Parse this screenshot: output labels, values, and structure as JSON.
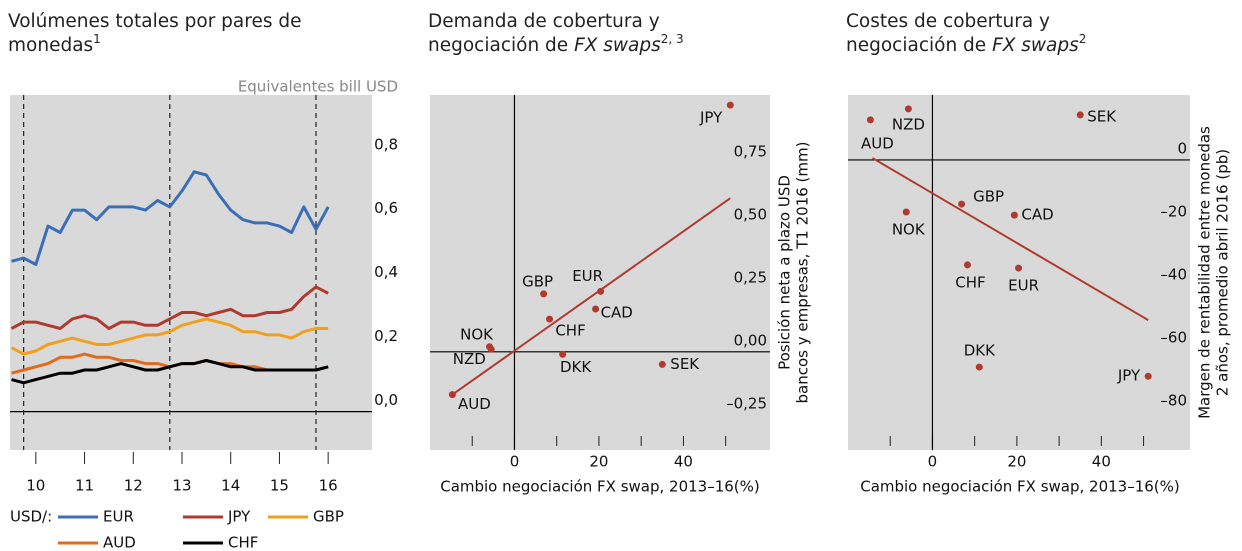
{
  "chart_data": [
    {
      "type": "line",
      "title_lines": [
        "Volúmenes totales por pares de",
        "monedas"
      ],
      "title_note": "1",
      "unit_label": "Equivalentes bill USD",
      "legend_title": "USD/:",
      "x": [
        2010,
        2010.25,
        2010.5,
        2010.75,
        2011,
        2011.25,
        2011.5,
        2011.75,
        2012,
        2012.25,
        2012.5,
        2012.75,
        2013,
        2013.25,
        2013.5,
        2013.75,
        2014,
        2014.25,
        2014.5,
        2014.75,
        2015,
        2015.25,
        2015.5,
        2015.75,
        2016,
        2016.25,
        2016.5
      ],
      "xlim": [
        2009.97,
        2017.4
      ],
      "xticks": [
        {
          "value": 2010.5,
          "label": "10"
        },
        {
          "value": 2011.5,
          "label": "11"
        },
        {
          "value": 2012.5,
          "label": "12"
        },
        {
          "value": 2013.5,
          "label": "13"
        },
        {
          "value": 2014.5,
          "label": "14"
        },
        {
          "value": 2015.5,
          "label": "15"
        },
        {
          "value": 2016.5,
          "label": "16"
        }
      ],
      "vlines": [
        2010.25,
        2013.25,
        2016.25
      ],
      "ylim": [
        -0.12,
        0.99
      ],
      "yticks": [
        {
          "value": 0,
          "label": "0,0"
        },
        {
          "value": 0.2,
          "label": "0,2"
        },
        {
          "value": 0.4,
          "label": "0,4"
        },
        {
          "value": 0.6,
          "label": "0,6"
        },
        {
          "value": 0.8,
          "label": "0,8"
        }
      ],
      "series": [
        {
          "name": "EUR",
          "color": "#3a6fb8",
          "values": [
            0.47,
            0.48,
            0.46,
            0.58,
            0.56,
            0.63,
            0.63,
            0.6,
            0.64,
            0.64,
            0.64,
            0.63,
            0.66,
            0.64,
            0.69,
            0.75,
            0.74,
            0.68,
            0.63,
            0.6,
            0.59,
            0.59,
            0.58,
            0.56,
            0.64,
            0.57,
            0.64
          ]
        },
        {
          "name": "JPY",
          "color": "#b03a2e",
          "values": [
            0.26,
            0.28,
            0.28,
            0.27,
            0.26,
            0.29,
            0.3,
            0.29,
            0.26,
            0.28,
            0.28,
            0.27,
            0.27,
            0.29,
            0.31,
            0.31,
            0.3,
            0.31,
            0.32,
            0.3,
            0.3,
            0.31,
            0.31,
            0.32,
            0.36,
            0.39,
            0.37
          ]
        },
        {
          "name": "GBP",
          "color": "#f0a01e",
          "values": [
            0.2,
            0.18,
            0.19,
            0.21,
            0.22,
            0.23,
            0.22,
            0.21,
            0.21,
            0.22,
            0.23,
            0.24,
            0.24,
            0.25,
            0.27,
            0.28,
            0.29,
            0.28,
            0.27,
            0.25,
            0.25,
            0.24,
            0.24,
            0.23,
            0.25,
            0.26,
            0.26
          ]
        },
        {
          "name": "AUD",
          "color": "#e06a1e",
          "values": [
            0.12,
            0.13,
            0.14,
            0.15,
            0.17,
            0.17,
            0.18,
            0.17,
            0.17,
            0.16,
            0.16,
            0.15,
            0.15,
            0.14,
            0.15,
            0.15,
            0.16,
            0.15,
            0.15,
            0.14,
            0.14,
            0.13,
            0.13,
            0.13,
            0.13,
            0.13,
            0.14
          ]
        },
        {
          "name": "CHF",
          "color": "#000000",
          "values": [
            0.1,
            0.09,
            0.1,
            0.11,
            0.12,
            0.12,
            0.13,
            0.13,
            0.14,
            0.15,
            0.14,
            0.13,
            0.13,
            0.14,
            0.15,
            0.15,
            0.16,
            0.15,
            0.14,
            0.14,
            0.13,
            0.13,
            0.13,
            0.13,
            0.13,
            0.13,
            0.14
          ]
        }
      ]
    },
    {
      "type": "scatter",
      "title_lines": [
        "Demanda de cobertura y",
        "negociación de "
      ],
      "title_italic": "FX swaps",
      "title_note": "2, 3",
      "xlabel": "Cambio negociación FX swap, 2013–16(%)",
      "ylabel_lines": [
        "Posición neta a plazo USD",
        "bancos y empresas, T1 2016 (mm)"
      ],
      "color": "#b03a2e",
      "categories": [
        "JPY",
        "EUR",
        "GBP",
        "CAD",
        "CHF",
        "NOK",
        "NZD",
        "DKK",
        "SEK",
        "AUD"
      ],
      "x": [
        51.1,
        20.4,
        6.9,
        19.2,
        8.3,
        -5.9,
        -5.5,
        11.4,
        35,
        -14.7
      ],
      "values": [
        0.98,
        0.24,
        0.23,
        0.17,
        0.13,
        0.02,
        0.01,
        -0.01,
        -0.05,
        -0.17
      ],
      "trendline": {
        "x": [
          -14.7,
          51.1
        ],
        "y": [
          -0.17,
          0.61
        ],
        "color": "#b03a2e"
      },
      "xlim": [
        -20,
        60.5
      ],
      "xticks": [
        0,
        20,
        40
      ],
      "xminorticks": [
        -10,
        10,
        30,
        50
      ],
      "ylim": [
        -0.39,
        1.02
      ],
      "yticks": [
        {
          "value": -0.25,
          "label": "–0,25"
        },
        {
          "value": 0,
          "label": "0,00"
        },
        {
          "value": 0.25,
          "label": "0,25"
        },
        {
          "value": 0.5,
          "label": "0,50"
        },
        {
          "value": 0.75,
          "label": "0,75"
        }
      ]
    },
    {
      "type": "scatter",
      "title_lines": [
        "Costes de cobertura y",
        "negociación de "
      ],
      "title_italic": "FX swaps",
      "title_note": "2",
      "xlabel": "Cambio negociación  FX swap, 2013–16(%)",
      "ylabel_lines": [
        "Margen de rentabilidad entre monedas",
        "2 años, promedio abril 2016 (pb)"
      ],
      "color": "#b03a2e",
      "categories": [
        "JPY",
        "EUR",
        "GBP",
        "CAD",
        "CHF",
        "NOK",
        "NZD",
        "DKK",
        "SEK",
        "AUD"
      ],
      "x": [
        51.1,
        20.4,
        6.9,
        19.4,
        8.3,
        -6.2,
        -5.7,
        11.1,
        35,
        -14.7
      ],
      "values": [
        -68.6,
        -34.3,
        -14,
        -17.5,
        -33.3,
        -16.5,
        16.2,
        -65.7,
        14.3,
        12.7
      ],
      "trendline": {
        "x": [
          -14.2,
          51.1
        ],
        "y": [
          0.6,
          -50.8
        ],
        "color": "#b03a2e"
      },
      "xlim": [
        -20,
        61
      ],
      "xticks": [
        0,
        20,
        40
      ],
      "xminorticks": [
        -10,
        10,
        30,
        50
      ],
      "ylim": [
        -92,
        20.6
      ],
      "yticks": [
        {
          "value": -80,
          "label": "–80"
        },
        {
          "value": -60,
          "label": "–60"
        },
        {
          "value": -40,
          "label": "–40"
        },
        {
          "value": -20,
          "label": "–20"
        },
        0
      ]
    }
  ]
}
